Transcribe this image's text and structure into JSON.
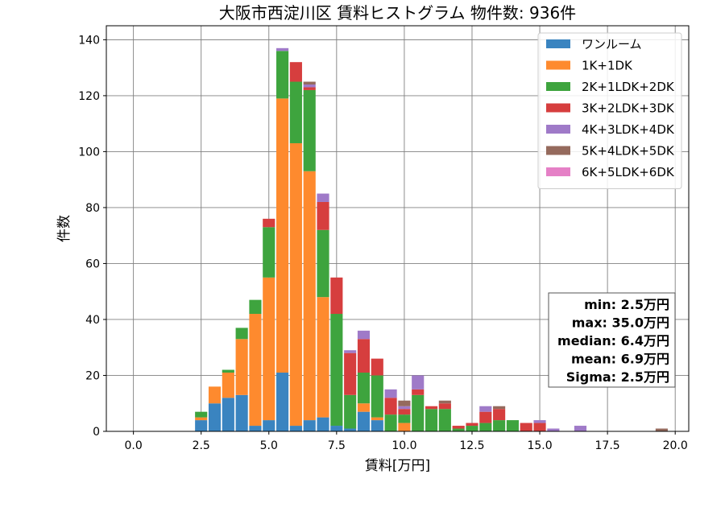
{
  "chart_data": {
    "type": "bar",
    "stacked": true,
    "title": "大阪市西淀川区 賃料ヒストグラム 物件数: 936件",
    "xlabel": "賃料[万円]",
    "ylabel": "件数",
    "xlim": [
      -1.0,
      20.5
    ],
    "ylim": [
      0,
      145
    ],
    "xticks": [
      0.0,
      2.5,
      5.0,
      7.5,
      10.0,
      12.5,
      15.0,
      17.5,
      20.0
    ],
    "xtick_labels": [
      "0.0",
      "2.5",
      "5.0",
      "7.5",
      "10.0",
      "12.5",
      "15.0",
      "17.5",
      "20.0"
    ],
    "yticks": [
      0,
      20,
      40,
      60,
      80,
      100,
      120,
      140
    ],
    "ytick_labels": [
      "0",
      "20",
      "40",
      "60",
      "80",
      "100",
      "120",
      "140"
    ],
    "grid": true,
    "bin_width": 0.5,
    "bins": [
      2.5,
      3.0,
      3.5,
      4.0,
      4.5,
      5.0,
      5.5,
      6.0,
      6.5,
      7.0,
      7.5,
      8.0,
      8.5,
      9.0,
      9.5,
      10.0,
      10.5,
      11.0,
      11.5,
      12.0,
      12.5,
      13.0,
      13.5,
      14.0,
      14.5,
      15.0,
      15.5,
      16.0,
      16.5,
      17.0,
      17.5,
      18.0,
      18.5,
      19.0,
      19.5
    ],
    "series": [
      {
        "name": "ワンルーム",
        "color": "#3a84c0",
        "values": [
          4,
          10,
          12,
          13,
          2,
          4,
          21,
          2,
          4,
          5,
          2,
          1,
          7,
          4,
          0,
          0,
          0,
          0,
          0,
          0,
          0,
          0,
          0,
          0,
          0,
          0,
          0,
          0,
          0,
          0,
          0,
          0,
          0,
          0,
          0
        ]
      },
      {
        "name": "1K+1DK",
        "color": "#fe8a2e",
        "values": [
          1,
          6,
          9,
          20,
          40,
          51,
          98,
          101,
          89,
          43,
          0,
          0,
          3,
          1,
          0,
          3,
          0,
          0,
          0,
          0,
          0,
          0,
          0,
          0,
          0,
          0,
          0,
          0,
          0,
          0,
          0,
          0,
          0,
          0,
          0
        ]
      },
      {
        "name": "2K+1LDK+2DK",
        "color": "#3ea43e",
        "values": [
          2,
          0,
          1,
          4,
          5,
          18,
          17,
          22,
          29,
          24,
          40,
          12,
          11,
          15,
          6,
          3,
          13,
          8,
          8,
          1,
          2,
          3,
          4,
          4,
          0,
          0,
          0,
          0,
          0,
          0,
          0,
          0,
          0,
          0,
          0
        ]
      },
      {
        "name": "3K+2LDK+3DK",
        "color": "#d63e3e",
        "values": [
          0,
          0,
          0,
          0,
          0,
          3,
          0,
          7,
          1,
          10,
          13,
          15,
          12,
          6,
          6,
          2,
          2,
          1,
          2,
          1,
          1,
          4,
          4,
          0,
          3,
          3,
          0,
          0,
          0,
          0,
          0,
          0,
          0,
          0,
          0
        ]
      },
      {
        "name": "4K+3LDK+4DK",
        "color": "#9f7ac8",
        "values": [
          0,
          0,
          0,
          0,
          0,
          0,
          1,
          0,
          1,
          3,
          0,
          1,
          3,
          0,
          3,
          1,
          5,
          0,
          0,
          0,
          0,
          2,
          0,
          0,
          0,
          1,
          1,
          0,
          2,
          0,
          0,
          0,
          0,
          0,
          0
        ]
      },
      {
        "name": "5K+4LDK+5DK",
        "color": "#956a5d",
        "values": [
          0,
          0,
          0,
          0,
          0,
          0,
          0,
          0,
          1,
          0,
          0,
          0,
          0,
          0,
          0,
          2,
          0,
          0,
          1,
          0,
          0,
          0,
          1,
          0,
          0,
          0,
          0,
          0,
          0,
          0,
          0,
          0,
          0,
          0,
          1
        ]
      },
      {
        "name": "6K+5LDK+6DK",
        "color": "#e580c6",
        "values": [
          0,
          0,
          0,
          0,
          0,
          0,
          0,
          0,
          0,
          0,
          0,
          0,
          0,
          0,
          0,
          0,
          0,
          0,
          0,
          0,
          0,
          0,
          0,
          0,
          0,
          0,
          0,
          0,
          0,
          0,
          0,
          0,
          0,
          0,
          0
        ]
      }
    ],
    "legend_position": "top-right",
    "annotation_position": "bottom-right",
    "annotation_lines": [
      "min: 2.5万円",
      "max: 35.0万円",
      "median: 6.4万円",
      "mean: 6.9万円",
      "Sigma: 2.5万円"
    ]
  }
}
